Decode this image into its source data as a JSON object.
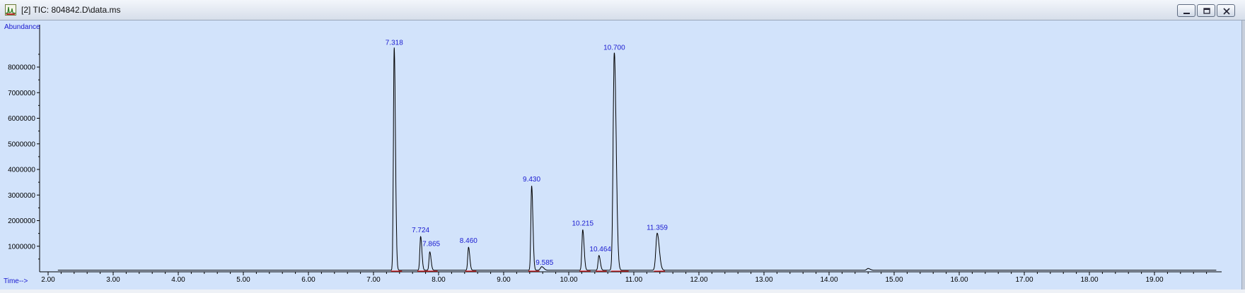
{
  "window": {
    "title": "[2] TIC: 804842.D\\data.ms",
    "icon": "chromatogram-app-icon",
    "buttons": [
      "minimize-icon",
      "restore-icon",
      "close-icon"
    ]
  },
  "colors": {
    "background": "#d2e3fb",
    "trace": "#000000",
    "baseline": "#e02020",
    "labels": "#1a1ad0"
  },
  "chart_data": {
    "type": "line",
    "ylabel": "Abundance",
    "xlabel": "Time-->",
    "xlim": [
      1.9,
      20.0
    ],
    "ylim": [
      0,
      9200000
    ],
    "x_ticks": [
      "2.00",
      "3.00",
      "4.00",
      "5.00",
      "6.00",
      "7.00",
      "8.00",
      "9.00",
      "10.00",
      "11.00",
      "12.00",
      "13.00",
      "14.00",
      "15.00",
      "16.00",
      "17.00",
      "18.00",
      "19.00"
    ],
    "y_ticks": [
      "1000000",
      "2000000",
      "3000000",
      "4000000",
      "5000000",
      "6000000",
      "7000000",
      "8000000"
    ],
    "baseline": 60000,
    "peaks": [
      {
        "rt": 7.318,
        "label": "7.318",
        "height": 8700000,
        "width": 0.012
      },
      {
        "rt": 7.724,
        "label": "7.724",
        "height": 1320000,
        "width": 0.012
      },
      {
        "rt": 7.865,
        "label": "7.865",
        "height": 720000,
        "width": 0.012
      },
      {
        "rt": 8.46,
        "label": "8.460",
        "height": 900000,
        "width": 0.012
      },
      {
        "rt": 9.43,
        "label": "9.430",
        "height": 3300000,
        "width": 0.012
      },
      {
        "rt": 9.585,
        "label": "9.585",
        "height": 140000,
        "width": 0.02
      },
      {
        "rt": 10.215,
        "label": "10.215",
        "height": 1580000,
        "width": 0.013
      },
      {
        "rt": 10.464,
        "label": "10.464",
        "height": 580000,
        "width": 0.013
      },
      {
        "rt": 10.7,
        "label": "10.700",
        "height": 8500000,
        "width": 0.018
      },
      {
        "rt": 11.359,
        "label": "11.359",
        "height": 1450000,
        "width": 0.02
      },
      {
        "rt": 14.6,
        "label": "",
        "height": 70000,
        "width": 0.02
      }
    ]
  }
}
